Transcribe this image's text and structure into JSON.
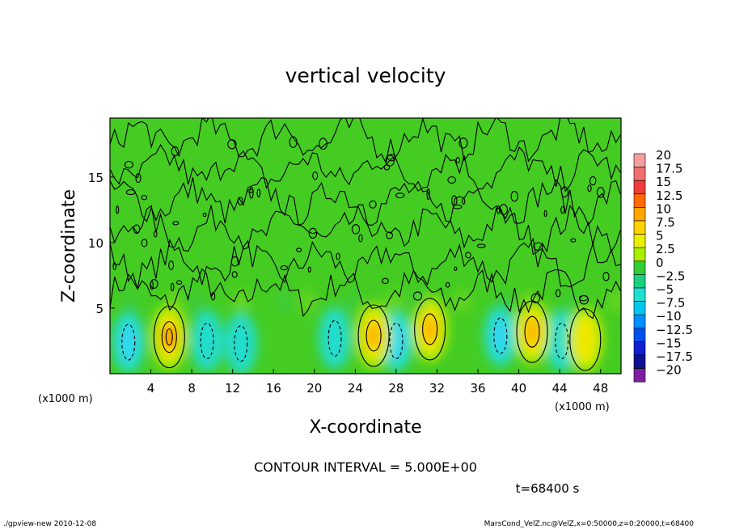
{
  "chart_data": {
    "type": "heatmap",
    "title": "vertical velocity",
    "xlabel": "X-coordinate",
    "ylabel": "Z-coordinate",
    "x_unit_left": "(x1000 m)",
    "x_unit_right": "(x1000 m)",
    "xlim": [
      0,
      50
    ],
    "ylim": [
      0,
      19.5
    ],
    "xticks": [
      "4",
      "8",
      "12",
      "16",
      "20",
      "24",
      "28",
      "32",
      "36",
      "40",
      "44",
      "48"
    ],
    "yticks": [
      "5",
      "10",
      "15"
    ],
    "colorbar": {
      "labels": [
        "20",
        "17.5",
        "15",
        "12.5",
        "10",
        "7.5",
        "5",
        "2.5",
        "0",
        "−2.5",
        "−5",
        "−7.5",
        "−10",
        "−12.5",
        "−15",
        "−17.5",
        "−20"
      ],
      "colors": [
        "#f4a0a0",
        "#f07070",
        "#ee3b3b",
        "#ff6a00",
        "#ffa500",
        "#ffd200",
        "#e8f000",
        "#aaee00",
        "#33cc33",
        "#18d080",
        "#20e0d0",
        "#00c8f0",
        "#0090ff",
        "#0050f0",
        "#1020d0",
        "#101090",
        "#7b1fa2"
      ]
    },
    "updraft_cores": [
      {
        "x": 5.8,
        "z": 2.8,
        "peak": 12.5
      },
      {
        "x": 25.8,
        "z": 2.9,
        "peak": 10
      },
      {
        "x": 31.3,
        "z": 3.4,
        "peak": 7.5
      },
      {
        "x": 41.3,
        "z": 3.2,
        "peak": 7.5
      },
      {
        "x": 46.5,
        "z": 2.6,
        "peak": 5
      }
    ],
    "downdraft_cores": [
      {
        "x": 1.8,
        "z": 2.4,
        "peak": -5
      },
      {
        "x": 9.5,
        "z": 2.5,
        "peak": -2.5
      },
      {
        "x": 12.8,
        "z": 2.3,
        "peak": -2.5
      },
      {
        "x": 22.0,
        "z": 2.7,
        "peak": -2.5
      },
      {
        "x": 28.0,
        "z": 2.5,
        "peak": -5
      },
      {
        "x": 38.2,
        "z": 2.9,
        "peak": -5
      },
      {
        "x": 44.2,
        "z": 2.5,
        "peak": -2.5
      }
    ],
    "contour_interval_text": "CONTOUR INTERVAL = 5.000E+00",
    "time_text": "t=68400 s"
  },
  "footer": {
    "left": "./gpview-new  2010-12-08",
    "right": "MarsCond_VelZ.nc@VelZ,x=0:50000,z=0:20000,t=68400"
  },
  "colors": {
    "background_green": "#44cc22",
    "frame": "#000000"
  }
}
